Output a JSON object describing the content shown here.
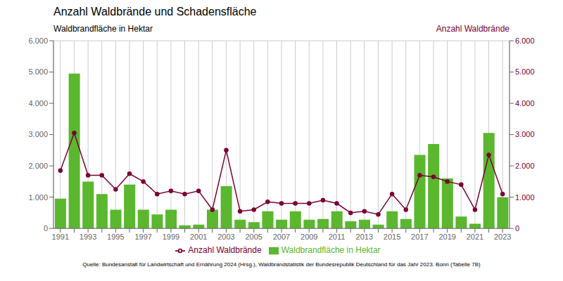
{
  "chart_data": {
    "type": "bar",
    "title": "Anzahl Waldbrände und Schadensfläche",
    "ylabel": "Waldbrandfläche in Hektar",
    "y2label": "Anzahl Waldbrände",
    "annotations": [
      "Quelle: Bundesanstalt für Landwirtschaft und Ernährung 2024 (Hrsg.), Waldbrandstatistik der Bundesrepublik Deutschland für das Jahr 2023. Bonn (Tabelle 7B)"
    ],
    "categories": [
      "1991",
      null,
      "1993",
      null,
      "1995",
      null,
      "1997",
      null,
      "1999",
      null,
      "2001",
      null,
      "2003",
      null,
      "2005",
      null,
      "2007",
      null,
      "2009",
      null,
      "2011",
      null,
      "2013",
      null,
      "2015",
      null,
      "2017",
      null,
      "2019",
      null,
      "2021",
      null,
      "2023"
    ],
    "series": [
      {
        "name": "Waldbrandfläche in Hektar",
        "type": "bar",
        "color": "#5ab72e",
        "values": [
          950,
          4950,
          1500,
          1100,
          600,
          1400,
          600,
          450,
          600,
          100,
          120,
          600,
          1350,
          280,
          200,
          550,
          280,
          550,
          280,
          300,
          550,
          230,
          280,
          120,
          550,
          300,
          2350,
          2700,
          1600,
          380,
          150,
          3050,
          1000
        ]
      },
      {
        "name": "Anzahl Waldbrände",
        "type": "line",
        "axis": "y2",
        "color": "#7b0032",
        "marker": "circle",
        "line_style": "solid",
        "values": [
          1850,
          3050,
          1700,
          1700,
          1250,
          1750,
          1500,
          1100,
          1200,
          1100,
          1200,
          600,
          2500,
          550,
          600,
          850,
          800,
          800,
          800,
          900,
          800,
          500,
          550,
          450,
          1100,
          600,
          1700,
          1650,
          1500,
          1400,
          600,
          2350,
          1100
        ]
      }
    ],
    "ylim": [
      0,
      6000
    ],
    "yticks": [
      0,
      {
        "value": 1000,
        "label": "1.000"
      },
      {
        "value": 2000,
        "label": "2.000"
      },
      {
        "value": 3000,
        "label": "3.000"
      },
      {
        "value": 4000,
        "label": "4.000"
      },
      {
        "value": 5000,
        "label": "5.000"
      },
      {
        "value": 6000,
        "label": "6.000"
      }
    ],
    "y2lim": [
      0,
      6000
    ],
    "y2ticks": [
      0,
      {
        "value": 1000,
        "label": "1.000"
      },
      {
        "value": 2000,
        "label": "2.000"
      },
      {
        "value": 3000,
        "label": "3.000"
      },
      {
        "value": 4000,
        "label": "4.000"
      },
      {
        "value": 5000,
        "label": "5.000"
      },
      {
        "value": 6000,
        "label": "6.000"
      }
    ],
    "grid": true,
    "legend": "bottom"
  }
}
